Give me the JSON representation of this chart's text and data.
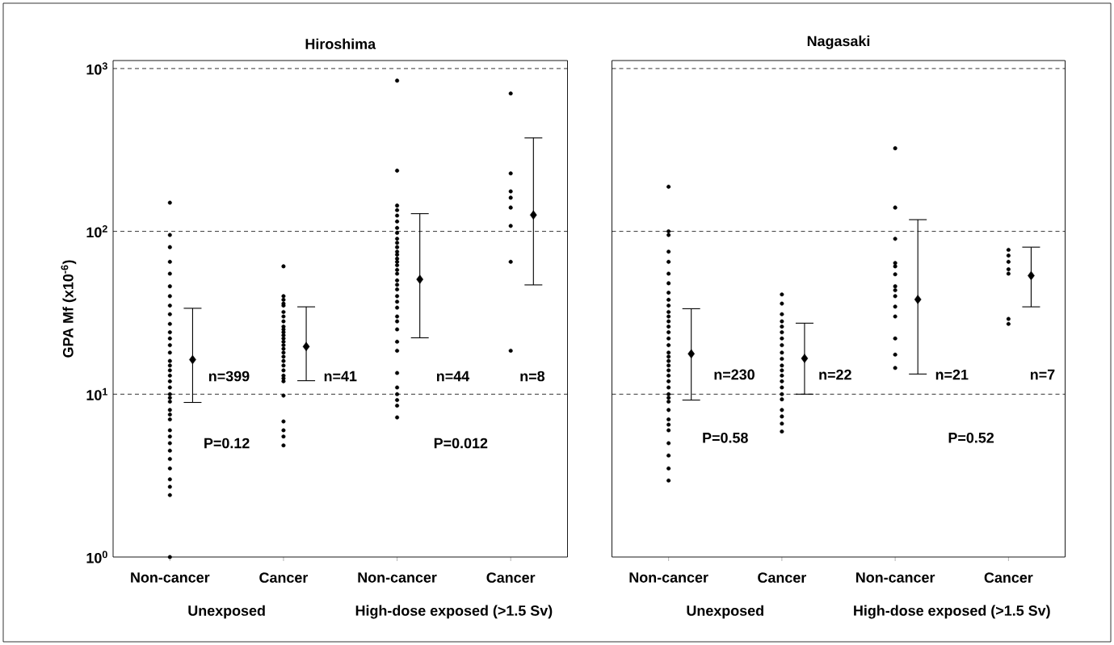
{
  "chart_data": [
    {
      "type": "scatter",
      "title": "Hiroshima",
      "ylabel": "GPA Mf  (x10$^{-6}$)",
      "log": "y",
      "marker": "circle",
      "color": "#000000",
      "categories": [
        "Non-cancer",
        "Cancer",
        "Non-cancer",
        "Cancer"
      ],
      "ylim": [
        1,
        1120
      ],
      "yticks": [
        {
          "value": 1,
          "label": "10$^{0}$"
        },
        {
          "value": 10,
          "label": "10$^{1}$"
        },
        {
          "value": 100,
          "label": "10$^{2}$"
        },
        {
          "value": 1000,
          "label": "10$^{3}$"
        }
      ],
      "ref_lines": [
        {
          "axis": "y",
          "value": 10,
          "line_style": "dashed"
        },
        {
          "axis": "y",
          "value": 100,
          "line_style": "dashed"
        },
        {
          "axis": "y",
          "value": 1000,
          "line_style": "dashed"
        }
      ],
      "series": [
        {
          "values": [
            150,
            61,
            843,
            703
          ]
        },
        {
          "values": [
            95,
            40,
            236,
            227
          ]
        },
        {
          "values": [
            80,
            38,
            144,
            176
          ]
        },
        {
          "values": [
            65,
            36,
            135,
            161
          ]
        },
        {
          "values": [
            55,
            35,
            125,
            140
          ]
        },
        {
          "values": [
            46,
            32,
            115,
            108
          ]
        },
        {
          "values": [
            40,
            30,
            105,
            65
          ]
        },
        {
          "values": [
            35,
            28,
            98,
            18.5
          ]
        },
        {
          "values": [
            31,
            26,
            90,
            null
          ]
        },
        {
          "values": [
            27,
            25,
            85,
            null
          ]
        },
        {
          "values": [
            24,
            24,
            80,
            null
          ]
        },
        {
          "values": [
            22,
            23,
            75,
            null
          ]
        },
        {
          "values": [
            20,
            22,
            72,
            null
          ]
        },
        {
          "values": [
            18,
            21,
            68,
            null
          ]
        },
        {
          "values": [
            16,
            20,
            65,
            null
          ]
        },
        {
          "values": [
            15,
            19,
            62,
            null
          ]
        },
        {
          "values": [
            14,
            18,
            58,
            null
          ]
        },
        {
          "values": [
            13,
            17,
            55,
            null
          ]
        },
        {
          "values": [
            12,
            16,
            50,
            null
          ]
        },
        {
          "values": [
            11,
            15,
            47,
            null
          ]
        },
        {
          "values": [
            10,
            14,
            44,
            null
          ]
        },
        {
          "values": [
            9.5,
            13,
            40,
            null
          ]
        },
        {
          "values": [
            9,
            12.5,
            37,
            null
          ]
        },
        {
          "values": [
            8,
            12,
            34,
            null
          ]
        },
        {
          "values": [
            7.5,
            9.8,
            30,
            null
          ]
        },
        {
          "values": [
            7,
            6.8,
            28,
            null
          ]
        },
        {
          "values": [
            6,
            6,
            25,
            null
          ]
        },
        {
          "values": [
            5.5,
            5.5,
            21,
            null
          ]
        },
        {
          "values": [
            5,
            4.85,
            18.5,
            null
          ]
        },
        {
          "values": [
            4.5,
            null,
            13.5,
            null
          ]
        },
        {
          "values": [
            4,
            null,
            11,
            null
          ]
        },
        {
          "values": [
            3.5,
            null,
            10,
            null
          ]
        },
        {
          "values": [
            3,
            null,
            9.2,
            null
          ]
        },
        {
          "values": [
            2.7,
            null,
            8.5,
            null
          ]
        },
        {
          "values": [
            2.4,
            null,
            7.2,
            null
          ]
        },
        {
          "values": [
            1,
            null,
            null,
            null
          ]
        },
        {
          "marker": "diamond",
          "values": [
            16.3,
            19.6,
            50.7,
            126
          ],
          "errors": [
            [
              8.9,
              33.7
            ],
            [
              12.1,
              34.4
            ],
            [
              22.2,
              128.5
            ],
            [
              46.9,
              375
            ]
          ]
        }
      ],
      "annotations": [
        "n=399",
        "n=41",
        "n=44",
        "n=8",
        "P=0.12",
        "P=0.012",
        "Unexposed",
        "High-dose exposed (>1.5 Sv)"
      ]
    },
    {
      "type": "scatter",
      "title": "Nagasaki",
      "log": "y",
      "marker": "circle",
      "color": "#000000",
      "tick_labels": "x",
      "categories": [
        "Non-cancer",
        "Cancer",
        "Non-cancer",
        "Cancer"
      ],
      "ylim": [
        1,
        1120
      ],
      "ref_lines": [
        {
          "axis": "y",
          "value": 10,
          "line_style": "dashed"
        },
        {
          "axis": "y",
          "value": 100,
          "line_style": "dashed"
        },
        {
          "axis": "y",
          "value": 1000,
          "line_style": "dashed"
        }
      ],
      "series": [
        {
          "values": [
            188,
            41,
            324,
            77
          ]
        },
        {
          "values": [
            100,
            36,
            140,
            71
          ]
        },
        {
          "values": [
            95,
            31,
            90,
            65
          ]
        },
        {
          "values": [
            75,
            28,
            64,
            58.5
          ]
        },
        {
          "values": [
            65,
            26,
            61,
            55
          ]
        },
        {
          "values": [
            55,
            24,
            54.5,
            29
          ]
        },
        {
          "values": [
            48,
            22,
            46,
            27
          ]
        },
        {
          "values": [
            42,
            20,
            43.5,
            null
          ]
        },
        {
          "values": [
            38,
            18,
            40,
            null
          ]
        },
        {
          "values": [
            35,
            16.5,
            34.5,
            null
          ]
        },
        {
          "values": [
            32,
            15,
            30,
            null
          ]
        },
        {
          "values": [
            30,
            14,
            22,
            null
          ]
        },
        {
          "values": [
            28,
            13,
            17.5,
            null
          ]
        },
        {
          "values": [
            26,
            12,
            14.5,
            null
          ]
        },
        {
          "values": [
            24,
            11,
            null,
            null
          ]
        },
        {
          "values": [
            22,
            10,
            null,
            null
          ]
        },
        {
          "values": [
            20,
            9.3,
            null,
            null
          ]
        },
        {
          "values": [
            18,
            8,
            null,
            null
          ]
        },
        {
          "values": [
            17,
            7.3,
            null,
            null
          ]
        },
        {
          "values": [
            16,
            6.6,
            null,
            null
          ]
        },
        {
          "values": [
            15,
            5.9,
            null,
            null
          ]
        },
        {
          "values": [
            14,
            null,
            null,
            null
          ]
        },
        {
          "values": [
            13,
            null,
            null,
            null
          ]
        },
        {
          "values": [
            12,
            null,
            null,
            null
          ]
        },
        {
          "values": [
            11,
            null,
            null,
            null
          ]
        },
        {
          "values": [
            10,
            null,
            null,
            null
          ]
        },
        {
          "values": [
            9.5,
            null,
            null,
            null
          ]
        },
        {
          "values": [
            9,
            null,
            null,
            null
          ]
        },
        {
          "values": [
            8,
            null,
            null,
            null
          ]
        },
        {
          "values": [
            7,
            null,
            null,
            null
          ]
        },
        {
          "values": [
            6.5,
            null,
            null,
            null
          ]
        },
        {
          "values": [
            6,
            null,
            null,
            null
          ]
        },
        {
          "values": [
            5,
            null,
            null,
            null
          ]
        },
        {
          "values": [
            4.2,
            null,
            null,
            null
          ]
        },
        {
          "values": [
            3.5,
            null,
            null,
            null
          ]
        },
        {
          "values": [
            2.95,
            null,
            null,
            null
          ]
        },
        {
          "marker": "diamond",
          "values": [
            17.7,
            16.6,
            38.2,
            53.5
          ],
          "errors": [
            [
              9.2,
              33.5
            ],
            [
              10,
              27.3
            ],
            [
              13.3,
              118
            ],
            [
              34.4,
              80
            ]
          ]
        }
      ],
      "annotations": [
        "n=230",
        "n=22",
        "n=21",
        "n=7",
        "P=0.58",
        "P=0.52",
        "Unexposed",
        "High-dose exposed (>1.5 Sv)"
      ]
    }
  ]
}
